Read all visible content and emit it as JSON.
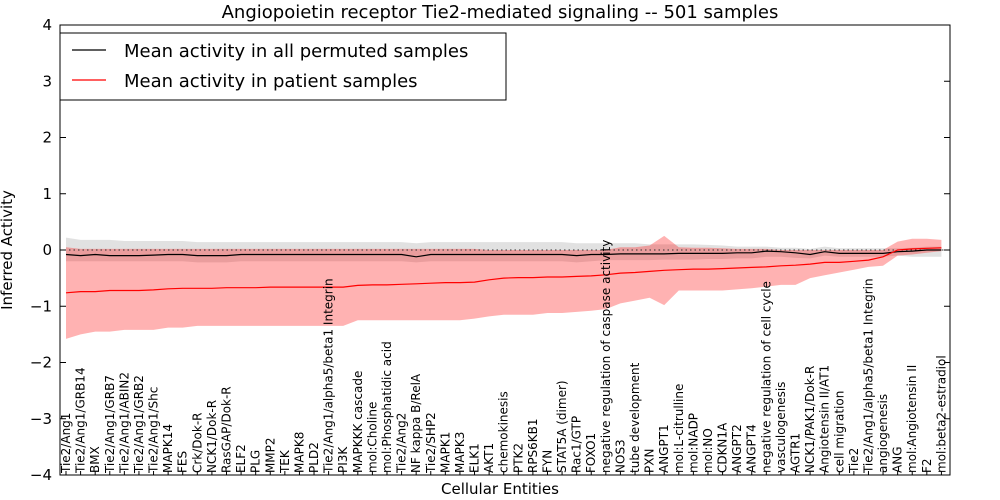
{
  "chart_data": {
    "type": "line",
    "title": "Angiopoietin receptor Tie2-mediated signaling -- 501 samples",
    "xlabel": "Cellular Entities",
    "ylabel": "Inferred Activity",
    "ylim": [
      -4,
      4
    ],
    "yticks": [
      -4,
      -3,
      -2,
      -1,
      0,
      1,
      2,
      3,
      4
    ],
    "legend_position": "top-left",
    "grid": false,
    "categories": [
      "Tie2/Ang1",
      "Tie2/Ang1/GRB14",
      "BMX",
      "Tie2/Ang1/GRB7",
      "Tie2/Ang1/ABIN2",
      "Tie2/Ang1/GRB2",
      "Tie2/Ang1/Shc",
      "MAPK14",
      "FES",
      "Crk/Dok-R",
      "NCK1/Dok-R",
      "RasGAP/Dok-R",
      "ELF2",
      "PLG",
      "MMP2",
      "TEK",
      "MAPK8",
      "PLD2",
      "Tie2/Ang1/alpha5/beta1 Integrin",
      "PI3K",
      "MAPKKK cascade",
      "mol:Choline",
      "mol:Phosphatidic acid",
      "Tie2/Ang2",
      "NF kappa B/RelA",
      "Tie2/SHP2",
      "MAPK1",
      "MAPK3",
      "ELK1",
      "AKT1",
      "chemokinesis",
      "PTK2",
      "RPS6KB1",
      "FYN",
      "STAT5A (dimer)",
      "Rac1/GTP",
      "FOXO1",
      "negative regulation of caspase activity",
      "NOS3",
      "tube development",
      "PXN",
      "ANGPT1",
      "mol:L-citrulline",
      "mol:NADP",
      "mol:NO",
      "CDKN1A",
      "ANGPT2",
      "ANGPT4",
      "negative regulation of cell cycle",
      "vasculogenesis",
      "AGTR1",
      "NCK1/PAK1/Dok-R",
      "Angiotensin II/AT1",
      "cell migration",
      "Tie2",
      "Tie2/Ang1/alpha5/beta1 Integrin",
      "angiogenesis",
      "ANG",
      "mol:Angiotensin II",
      "F2",
      "mol:beta2-estradiol"
    ],
    "series": [
      {
        "name": "Mean activity in all permuted samples",
        "color": "#000000",
        "values": [
          -0.08,
          -0.1,
          -0.08,
          -0.1,
          -0.1,
          -0.1,
          -0.09,
          -0.08,
          -0.08,
          -0.1,
          -0.1,
          -0.1,
          -0.08,
          -0.08,
          -0.08,
          -0.08,
          -0.08,
          -0.08,
          -0.08,
          -0.08,
          -0.08,
          -0.08,
          -0.08,
          -0.08,
          -0.12,
          -0.08,
          -0.08,
          -0.08,
          -0.08,
          -0.08,
          -0.08,
          -0.08,
          -0.08,
          -0.08,
          -0.08,
          -0.1,
          -0.08,
          -0.08,
          -0.07,
          -0.07,
          -0.07,
          -0.07,
          -0.06,
          -0.06,
          -0.06,
          -0.06,
          -0.05,
          -0.05,
          -0.02,
          -0.03,
          -0.05,
          -0.08,
          -0.03,
          -0.06,
          -0.06,
          -0.06,
          -0.06,
          -0.03,
          -0.02,
          0.0,
          0.0
        ],
        "lower": [
          -0.2,
          -0.2,
          -0.2,
          -0.2,
          -0.2,
          -0.2,
          -0.2,
          -0.2,
          -0.2,
          -0.22,
          -0.22,
          -0.22,
          -0.2,
          -0.2,
          -0.2,
          -0.2,
          -0.2,
          -0.2,
          -0.2,
          -0.2,
          -0.2,
          -0.2,
          -0.2,
          -0.2,
          -0.22,
          -0.2,
          -0.2,
          -0.2,
          -0.2,
          -0.2,
          -0.2,
          -0.2,
          -0.2,
          -0.2,
          -0.2,
          -0.22,
          -0.2,
          -0.18,
          -0.18,
          -0.18,
          -0.18,
          -0.17,
          -0.17,
          -0.17,
          -0.16,
          -0.16,
          -0.15,
          -0.15,
          -0.12,
          -0.12,
          -0.14,
          -0.15,
          -0.1,
          -0.12,
          -0.12,
          -0.12,
          -0.12,
          -0.1,
          -0.12,
          -0.12,
          -0.12
        ],
        "upper": [
          0.22,
          0.18,
          0.18,
          0.18,
          0.16,
          0.16,
          0.16,
          0.16,
          0.16,
          0.14,
          0.14,
          0.14,
          0.14,
          0.14,
          0.14,
          0.14,
          0.14,
          0.14,
          0.14,
          0.14,
          0.14,
          0.14,
          0.14,
          0.14,
          0.12,
          0.14,
          0.14,
          0.14,
          0.14,
          0.14,
          0.14,
          0.14,
          0.14,
          0.14,
          0.14,
          0.12,
          0.12,
          0.12,
          0.12,
          0.12,
          0.1,
          0.1,
          0.1,
          0.1,
          0.09,
          0.08,
          0.06,
          0.06,
          0.06,
          0.04,
          0.04,
          0.02,
          0.06,
          0.03,
          0.03,
          0.03,
          0.03,
          0.03,
          0.04,
          0.06,
          0.06
        ]
      },
      {
        "name": "Mean activity in patient samples",
        "color": "#ff0000",
        "values": [
          -0.76,
          -0.74,
          -0.74,
          -0.72,
          -0.72,
          -0.72,
          -0.71,
          -0.69,
          -0.68,
          -0.68,
          -0.68,
          -0.67,
          -0.67,
          -0.67,
          -0.66,
          -0.66,
          -0.66,
          -0.66,
          -0.66,
          -0.66,
          -0.63,
          -0.62,
          -0.62,
          -0.61,
          -0.6,
          -0.59,
          -0.58,
          -0.58,
          -0.57,
          -0.53,
          -0.5,
          -0.49,
          -0.49,
          -0.48,
          -0.48,
          -0.47,
          -0.46,
          -0.44,
          -0.41,
          -0.4,
          -0.38,
          -0.36,
          -0.35,
          -0.34,
          -0.34,
          -0.33,
          -0.32,
          -0.31,
          -0.3,
          -0.28,
          -0.27,
          -0.25,
          -0.22,
          -0.22,
          -0.2,
          -0.18,
          -0.12,
          0.0,
          0.02,
          0.03,
          0.04
        ],
        "lower": [
          -1.58,
          -1.5,
          -1.45,
          -1.45,
          -1.42,
          -1.42,
          -1.42,
          -1.38,
          -1.38,
          -1.35,
          -1.35,
          -1.35,
          -1.35,
          -1.35,
          -1.35,
          -1.35,
          -1.35,
          -1.35,
          -1.35,
          -1.35,
          -1.25,
          -1.25,
          -1.25,
          -1.25,
          -1.25,
          -1.25,
          -1.25,
          -1.25,
          -1.22,
          -1.18,
          -1.15,
          -1.15,
          -1.15,
          -1.12,
          -1.12,
          -1.1,
          -1.08,
          -1.05,
          -0.95,
          -0.9,
          -0.85,
          -0.98,
          -0.72,
          -0.72,
          -0.72,
          -0.72,
          -0.7,
          -0.68,
          -0.65,
          -0.62,
          -0.62,
          -0.5,
          -0.45,
          -0.4,
          -0.35,
          -0.3,
          -0.28,
          -0.1,
          -0.08,
          -0.05,
          -0.02
        ],
        "upper": [
          0.05,
          0.02,
          0.02,
          0.02,
          0.02,
          0.02,
          0.02,
          0.02,
          0.02,
          0.02,
          0.02,
          0.02,
          0.02,
          0.02,
          0.02,
          0.02,
          0.02,
          0.02,
          0.02,
          0.02,
          0.02,
          0.02,
          0.02,
          0.02,
          0.02,
          0.02,
          0.02,
          0.02,
          0.02,
          0.0,
          0.0,
          0.0,
          0.0,
          0.0,
          0.0,
          0.0,
          0.0,
          0.0,
          0.05,
          0.05,
          0.08,
          0.25,
          0.05,
          0.04,
          0.04,
          0.03,
          0.02,
          0.02,
          0.02,
          0.0,
          0.0,
          0.0,
          0.0,
          0.0,
          0.0,
          0.0,
          0.0,
          0.15,
          0.2,
          0.2,
          0.18
        ]
      }
    ]
  }
}
